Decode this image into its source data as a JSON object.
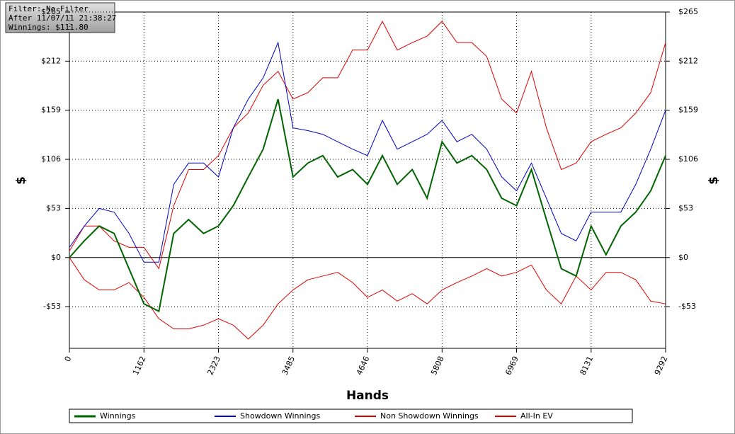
{
  "chart_data": {
    "type": "line",
    "filter_box": [
      "Filter: No Filter",
      "After 11/07/11 21:38:27",
      "Winnings: $111.80"
    ],
    "xlabel": "Hands",
    "ylabel": "$",
    "y2label": "$",
    "x": [
      0,
      232,
      465,
      697,
      929,
      1162,
      1394,
      1626,
      1858,
      2091,
      2323,
      2555,
      2788,
      3020,
      3252,
      3485,
      3717,
      3949,
      4181,
      4414,
      4646,
      4878,
      5110,
      5343,
      5575,
      5808,
      6040,
      6272,
      6504,
      6737,
      6969,
      7201,
      7434,
      7666,
      7898,
      8131,
      8363,
      8595,
      8827,
      9060,
      9292
    ],
    "xlim": [
      0,
      9292
    ],
    "xticks": [
      0,
      1162,
      2323,
      3485,
      4646,
      5808,
      6969,
      8131,
      9292
    ],
    "ylim": [
      -98,
      265
    ],
    "yticks": [
      {
        "value": -53,
        "label": "-$53"
      },
      {
        "value": 0,
        "label": "$0"
      },
      {
        "value": 53,
        "label": "$53"
      },
      {
        "value": 106,
        "label": "$106"
      },
      {
        "value": 159,
        "label": "$159"
      },
      {
        "value": 212,
        "label": "$212"
      },
      {
        "value": 265,
        "label": "$265"
      }
    ],
    "y2lim": [
      -98,
      265
    ],
    "y2ticks": [
      {
        "value": -53,
        "label": "-$53"
      },
      {
        "value": 0,
        "label": "$0"
      },
      {
        "value": 53,
        "label": "$53"
      },
      {
        "value": 106,
        "label": "$106"
      },
      {
        "value": 159,
        "label": "$159"
      },
      {
        "value": 212,
        "label": "$212"
      },
      {
        "value": 265,
        "label": "$265"
      }
    ],
    "grid": true,
    "series": [
      {
        "name": "Winnings",
        "color": "#006400",
        "width": 2,
        "values": [
          0,
          18,
          34,
          26,
          -12,
          -50,
          -58,
          26,
          41,
          26,
          34,
          56,
          87,
          117,
          171,
          87,
          102,
          110,
          87,
          95,
          79,
          110,
          79,
          95,
          64,
          125,
          102,
          110,
          95,
          64,
          56,
          95,
          41,
          -12,
          -20,
          34,
          3,
          34,
          49,
          72,
          110
        ]
      },
      {
        "name": "Showdown Winnings",
        "color": "#0000cc",
        "width": 1,
        "values": [
          11,
          34,
          53,
          49,
          26,
          -5,
          -5,
          79,
          102,
          102,
          87,
          140,
          171,
          194,
          232,
          140,
          137,
          133,
          125,
          117,
          110,
          148,
          117,
          125,
          133,
          148,
          125,
          133,
          117,
          87,
          72,
          102,
          64,
          26,
          18,
          49,
          49,
          49,
          79,
          117,
          159
        ]
      },
      {
        "name": "Non Showdown Winnings",
        "color": "#e00000",
        "width": 1,
        "values": [
          0,
          -24,
          -35,
          -35,
          -27,
          -43,
          -66,
          -77,
          -77,
          -73,
          -66,
          -73,
          -88,
          -73,
          -50,
          -35,
          -24,
          -20,
          -16,
          -27,
          -43,
          -35,
          -47,
          -39,
          -50,
          -35,
          -27,
          -20,
          -12,
          -20,
          -16,
          -8,
          -35,
          -50,
          -20,
          -35,
          -16,
          -16,
          -24,
          -47,
          -50
        ]
      },
      {
        "name": "All-In EV",
        "color": "#e00000",
        "width": 1,
        "values": [
          7,
          34,
          34,
          18,
          11,
          11,
          -12,
          56,
          95,
          95,
          110,
          140,
          156,
          186,
          201,
          171,
          178,
          194,
          194,
          224,
          224,
          255,
          224,
          232,
          239,
          255,
          232,
          232,
          217,
          171,
          156,
          201,
          140,
          95,
          102,
          125,
          133,
          140,
          156,
          178,
          232
        ]
      }
    ]
  }
}
